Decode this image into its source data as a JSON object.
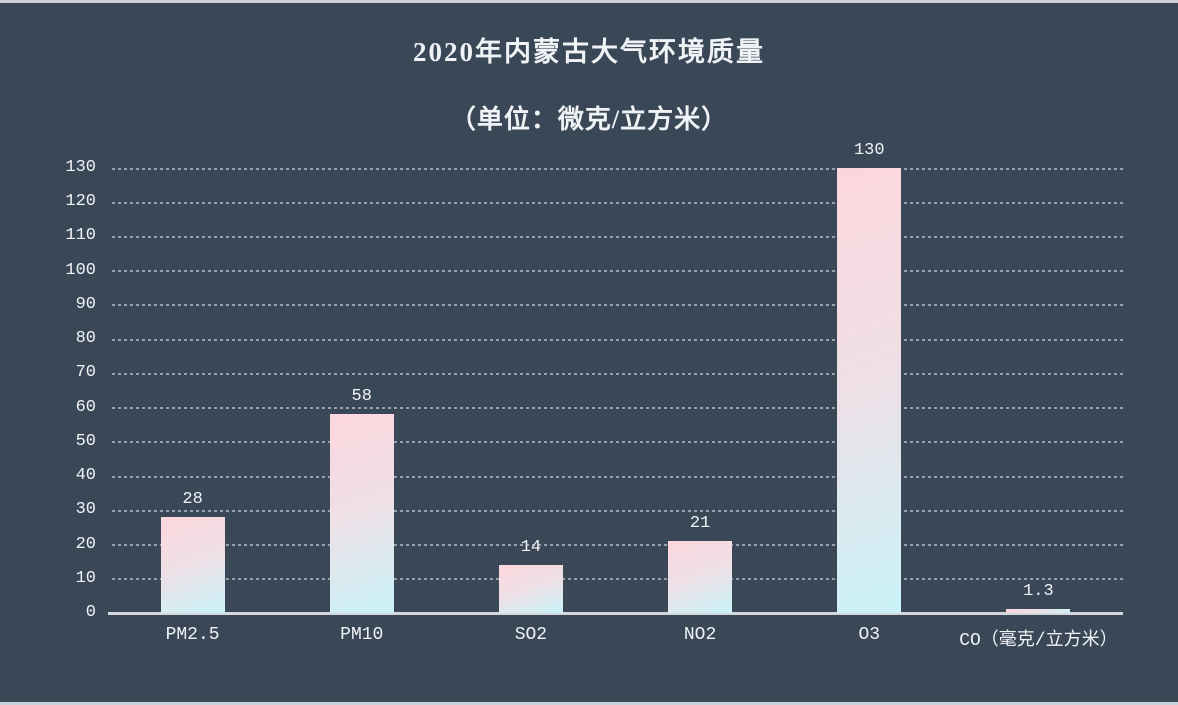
{
  "chart_data": {
    "type": "bar",
    "title": "2020年内蒙古大气环境质量",
    "subtitle": "（单位：微克/立方米）",
    "categories": [
      "PM2.5",
      "PM10",
      "SO2",
      "NO2",
      "O3",
      "CO（毫克/立方米）"
    ],
    "values": [
      28,
      58,
      14,
      21,
      130,
      1.3
    ],
    "value_labels": [
      "28",
      "58",
      "14",
      "21",
      "130",
      "1.3"
    ],
    "xlabel": "",
    "ylabel": "",
    "ylim": [
      0,
      130
    ],
    "ytick_step": 10,
    "yticks": [
      0,
      10,
      20,
      30,
      40,
      50,
      60,
      70,
      80,
      90,
      100,
      110,
      120,
      130
    ],
    "grid": "horizontal-dotted",
    "legend": "none",
    "colors": {
      "background": "#3a4757",
      "bar_gradient_top": "#fdd6de",
      "bar_gradient_bottom": "#c9f3f8",
      "text": "#f0f3f6",
      "gridline": "#9aa1a9",
      "axis_line": "#d4d8dc",
      "frame_border": "#ccd2db"
    }
  }
}
